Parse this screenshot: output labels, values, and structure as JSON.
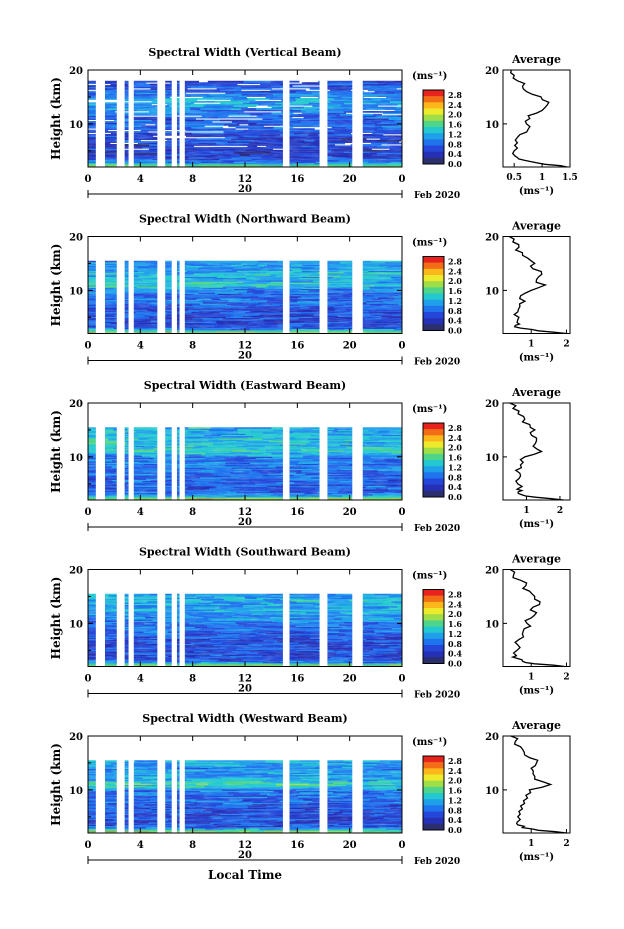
{
  "x_axis": {
    "ticks": [
      "0",
      "4",
      "8",
      "12",
      "16",
      "20",
      "0"
    ],
    "date_day": "20",
    "date_label": "Feb 2020",
    "label": "Local Time"
  },
  "colorbar": {
    "unit": "(ms⁻¹)",
    "labels": [
      "2.8",
      "2.4",
      "2.0",
      "1.6",
      "1.2",
      "0.8",
      "0.4",
      "0.0"
    ],
    "colors": [
      "#e8231d",
      "#f36d16",
      "#fcb81b",
      "#ecea2a",
      "#9fde46",
      "#4fd58a",
      "#24c9cf",
      "#1fa1ea",
      "#1f74ee",
      "#2447d9",
      "#2630b6",
      "#2b2f6e"
    ]
  },
  "chart_data": [
    {
      "type": "heatmap",
      "title": "Spectral Width (Vertical Beam)",
      "ylabel": "Height (km)",
      "yticks": [
        "20",
        "10"
      ],
      "ylim": [
        2,
        20
      ],
      "xlim_hours": [
        0,
        24
      ],
      "clim": [
        0.0,
        3.0
      ],
      "data_gaps_hours": [
        [
          0.6,
          1.3
        ],
        [
          2.2,
          2.8
        ],
        [
          3.1,
          3.5
        ],
        [
          5.3,
          5.9
        ],
        [
          6.4,
          6.8
        ],
        [
          7.0,
          7.4
        ],
        [
          14.9,
          15.4
        ],
        [
          17.7,
          18.3
        ],
        [
          20.2,
          21.0
        ]
      ],
      "profile": {
        "title": "Average",
        "xlabel": "(ms⁻¹)",
        "xticks": [
          "0.5",
          "1",
          "1.5"
        ],
        "xtick_values": [
          0.5,
          1.0,
          1.5
        ],
        "xlim": [
          0.3,
          1.5
        ],
        "yticks": [
          "20",
          "10"
        ],
        "ylim": [
          2,
          20
        ],
        "heights_km": [
          2,
          2.5,
          3,
          3.5,
          4,
          5,
          6,
          7,
          8,
          9,
          10,
          11,
          12,
          13,
          14,
          15,
          16,
          17,
          18,
          19,
          20
        ],
        "values": [
          1.45,
          1.05,
          0.8,
          0.58,
          0.52,
          0.5,
          0.51,
          0.52,
          0.6,
          0.75,
          0.72,
          0.78,
          0.9,
          1.05,
          1.12,
          0.98,
          0.72,
          0.65,
          0.56,
          0.5,
          0.45
        ]
      }
    },
    {
      "type": "heatmap",
      "title": "Spectral Width (Northward Beam)",
      "ylabel": "Height (km)",
      "yticks": [
        "20",
        "10"
      ],
      "ylim": [
        2,
        20
      ],
      "xlim_hours": [
        0,
        24
      ],
      "clim": [
        0.0,
        3.0
      ],
      "data_gaps_hours": [
        [
          0.6,
          1.3
        ],
        [
          2.2,
          2.8
        ],
        [
          3.1,
          3.5
        ],
        [
          5.3,
          5.9
        ],
        [
          6.4,
          6.8
        ],
        [
          7.0,
          7.4
        ],
        [
          14.9,
          15.4
        ],
        [
          17.7,
          18.3
        ],
        [
          20.2,
          21.0
        ]
      ],
      "profile": {
        "title": "Average",
        "xlabel": "(ms⁻¹)",
        "xticks": [
          "1",
          "2"
        ],
        "xtick_values": [
          1,
          2
        ],
        "xlim": [
          0.2,
          2.1
        ],
        "yticks": [
          "20",
          "10"
        ],
        "ylim": [
          2,
          20
        ],
        "heights_km": [
          2,
          2.5,
          3,
          3.5,
          4,
          5,
          6,
          7,
          8,
          9,
          10,
          11,
          12,
          13,
          14,
          15,
          16,
          17,
          18,
          19,
          20
        ],
        "values": [
          2.0,
          1.2,
          0.7,
          0.55,
          0.6,
          0.65,
          0.62,
          0.68,
          0.82,
          0.7,
          1.0,
          1.4,
          1.15,
          1.3,
          1.05,
          1.1,
          0.9,
          0.75,
          0.65,
          0.48,
          0.38
        ]
      }
    },
    {
      "type": "heatmap",
      "title": "Spectral Width (Eastward Beam)",
      "ylabel": "Height (km)",
      "yticks": [
        "20",
        "10"
      ],
      "ylim": [
        2,
        20
      ],
      "xlim_hours": [
        0,
        24
      ],
      "clim": [
        0.0,
        3.0
      ],
      "data_gaps_hours": [
        [
          0.6,
          1.3
        ],
        [
          2.2,
          2.8
        ],
        [
          3.1,
          3.5
        ],
        [
          5.3,
          5.9
        ],
        [
          6.4,
          6.8
        ],
        [
          7.0,
          7.4
        ],
        [
          14.9,
          15.4
        ],
        [
          17.7,
          18.3
        ],
        [
          20.2,
          21.0
        ]
      ],
      "profile": {
        "title": "Average",
        "xlabel": "(ms⁻¹)",
        "xticks": [
          "1",
          "2"
        ],
        "xtick_values": [
          1,
          2
        ],
        "xlim": [
          0.3,
          2.3
        ],
        "yticks": [
          "20",
          "10"
        ],
        "ylim": [
          2,
          20
        ],
        "heights_km": [
          2,
          2.5,
          3,
          3.5,
          4,
          5,
          6,
          7,
          8,
          9,
          10,
          11,
          12,
          13,
          14,
          15,
          16,
          17,
          18,
          19,
          20
        ],
        "values": [
          2.1,
          1.3,
          0.85,
          0.75,
          0.72,
          0.74,
          0.78,
          0.8,
          0.85,
          0.9,
          0.95,
          1.45,
          1.2,
          1.3,
          1.15,
          1.25,
          1.1,
          0.95,
          0.75,
          0.6,
          0.5
        ]
      }
    },
    {
      "type": "heatmap",
      "title": "Spectral Width (Southward Beam)",
      "ylabel": "Height (km)",
      "yticks": [
        "20",
        "10"
      ],
      "ylim": [
        2,
        20
      ],
      "xlim_hours": [
        0,
        24
      ],
      "clim": [
        0.0,
        3.0
      ],
      "data_gaps_hours": [
        [
          0.6,
          1.3
        ],
        [
          2.2,
          2.8
        ],
        [
          3.1,
          3.5
        ],
        [
          5.3,
          5.9
        ],
        [
          6.4,
          6.8
        ],
        [
          7.0,
          7.4
        ],
        [
          14.9,
          15.4
        ],
        [
          17.7,
          18.3
        ],
        [
          20.2,
          21.0
        ]
      ],
      "profile": {
        "title": "Average",
        "xlabel": "(ms⁻¹)",
        "xticks": [
          "1",
          "2"
        ],
        "xtick_values": [
          1,
          2
        ],
        "xlim": [
          0.2,
          2.1
        ],
        "yticks": [
          "20",
          "10"
        ],
        "ylim": [
          2,
          20
        ],
        "heights_km": [
          2,
          2.5,
          3,
          3.5,
          4,
          5,
          6,
          7,
          8,
          9,
          10,
          11,
          12,
          13,
          14,
          15,
          16,
          17,
          18,
          19,
          20
        ],
        "values": [
          1.95,
          1.1,
          0.75,
          0.6,
          0.58,
          0.6,
          0.62,
          0.65,
          0.75,
          0.8,
          0.88,
          1.0,
          1.15,
          1.05,
          1.25,
          1.1,
          0.95,
          0.85,
          0.7,
          0.5,
          0.4
        ]
      }
    },
    {
      "type": "heatmap",
      "title": "Spectral Width (Westward Beam)",
      "ylabel": "Height (km)",
      "yticks": [
        "20",
        "10"
      ],
      "ylim": [
        2,
        20
      ],
      "xlim_hours": [
        0,
        24
      ],
      "clim": [
        0.0,
        3.0
      ],
      "data_gaps_hours": [
        [
          0.6,
          1.3
        ],
        [
          2.2,
          2.8
        ],
        [
          3.1,
          3.5
        ],
        [
          5.3,
          5.9
        ],
        [
          6.4,
          6.8
        ],
        [
          7.0,
          7.4
        ],
        [
          14.9,
          15.4
        ],
        [
          17.7,
          18.3
        ],
        [
          20.2,
          21.0
        ]
      ],
      "profile": {
        "title": "Average",
        "xlabel": "(ms⁻¹)",
        "xticks": [
          "1",
          "2"
        ],
        "xtick_values": [
          1,
          2
        ],
        "xlim": [
          0.2,
          2.1
        ],
        "yticks": [
          "20",
          "10"
        ],
        "ylim": [
          2,
          20
        ],
        "heights_km": [
          2,
          2.5,
          3,
          3.5,
          4,
          5,
          6,
          7,
          8,
          9,
          10,
          11,
          12,
          13,
          14,
          15,
          16,
          17,
          18,
          19,
          20
        ],
        "values": [
          2.0,
          1.2,
          0.75,
          0.62,
          0.6,
          0.62,
          0.65,
          0.7,
          0.78,
          0.85,
          0.95,
          1.55,
          1.1,
          1.05,
          1.0,
          1.15,
          0.95,
          0.8,
          0.7,
          0.55,
          0.42
        ]
      }
    }
  ]
}
